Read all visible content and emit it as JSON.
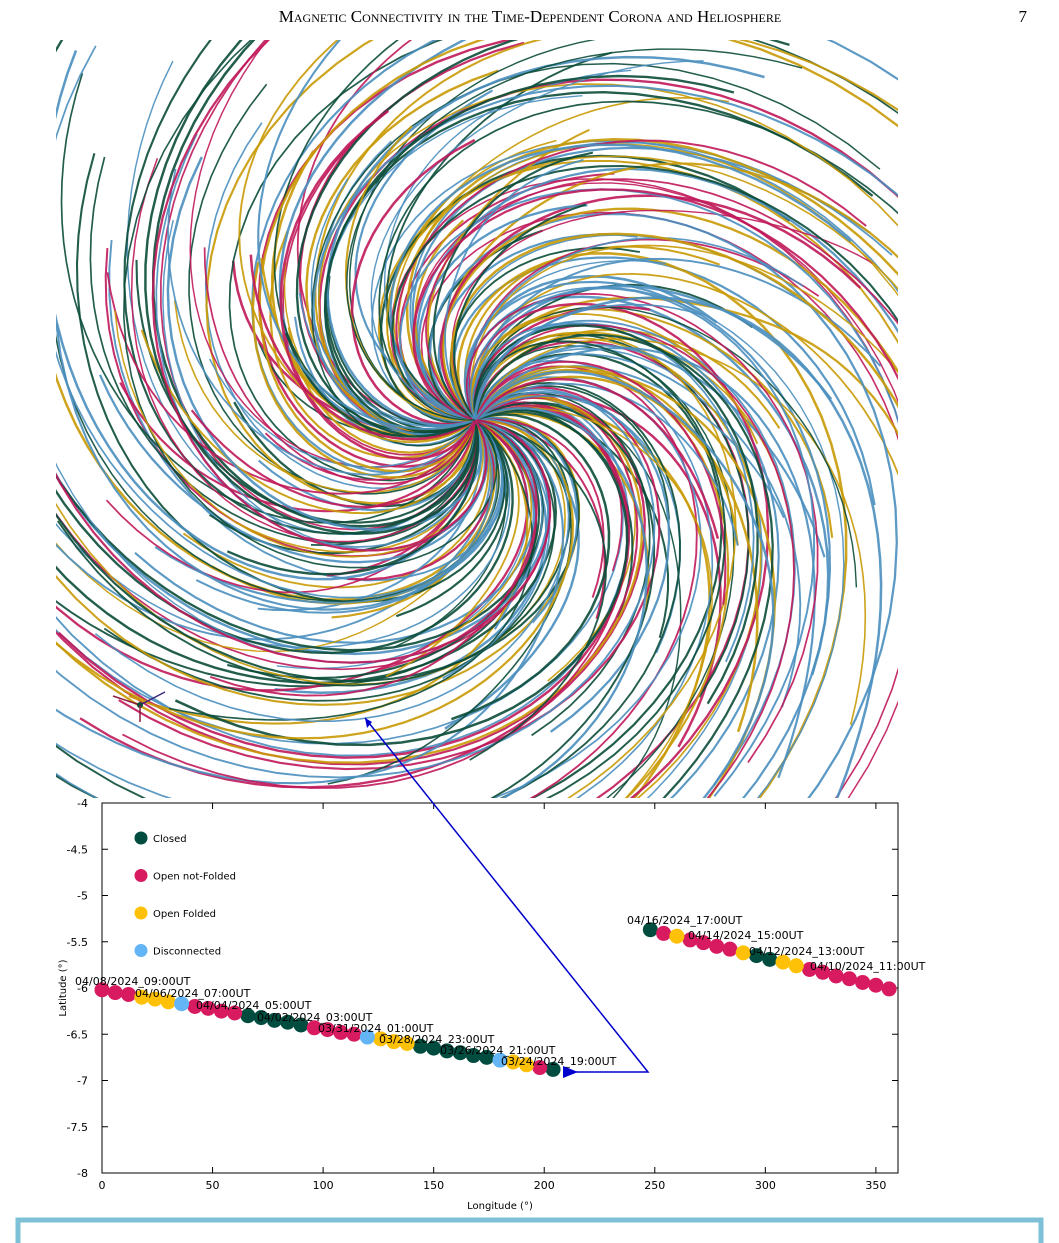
{
  "header": {
    "title": "Magnetic Connectivity in the Time-Dependent Corona and Heliosphere",
    "page": "7"
  },
  "chart_data": {
    "type": "scatter",
    "xlabel": "Longitude (°)",
    "ylabel": "Latitude (°)",
    "xlim": [
      0,
      360
    ],
    "ylim": [
      -8,
      -4
    ],
    "xticks": [
      0,
      50,
      100,
      150,
      200,
      250,
      300,
      350
    ],
    "yticks": [
      -8,
      -7.5,
      -7,
      -6.5,
      -6,
      -5.5,
      -5,
      -4.5,
      -4
    ],
    "legend": "upper left",
    "series": [
      {
        "name": "Closed",
        "color": "#004d40",
        "x": [
          66,
          72,
          78,
          84,
          90,
          144,
          150,
          156,
          162,
          168,
          174,
          204,
          248,
          296,
          302
        ],
        "values": [
          -6.3,
          -6.32,
          -6.35,
          -6.37,
          -6.4,
          -6.63,
          -6.65,
          -6.68,
          -6.7,
          -6.73,
          -6.75,
          -6.88,
          -5.37,
          -5.65,
          -5.69
        ]
      },
      {
        "name": "Open not-Folded",
        "color": "#d81b60",
        "x": [
          0,
          6,
          12,
          42,
          48,
          54,
          60,
          96,
          102,
          108,
          114,
          198,
          254,
          266,
          272,
          278,
          284,
          320,
          326,
          332,
          338,
          344,
          350,
          356
        ],
        "values": [
          -6.02,
          -6.05,
          -6.07,
          -6.2,
          -6.22,
          -6.25,
          -6.27,
          -6.43,
          -6.45,
          -6.48,
          -6.5,
          -6.86,
          -5.41,
          -5.48,
          -5.51,
          -5.55,
          -5.58,
          -5.8,
          -5.83,
          -5.87,
          -5.9,
          -5.94,
          -5.97,
          -6.01
        ]
      },
      {
        "name": "Open Folded",
        "color": "#ffc107",
        "x": [
          18,
          24,
          30,
          126,
          132,
          138,
          186,
          192,
          260,
          290,
          308,
          314
        ],
        "values": [
          -6.1,
          -6.12,
          -6.15,
          -6.55,
          -6.58,
          -6.6,
          -6.8,
          -6.83,
          -5.44,
          -5.62,
          -5.72,
          -5.76
        ]
      },
      {
        "name": "Disconnected",
        "color": "#64b5f6",
        "x": [
          36,
          120,
          180
        ],
        "values": [
          -6.17,
          -6.53,
          -6.78
        ]
      }
    ],
    "annotations": [
      "04/08/2024_09:00UT",
      "04/06/2024_07:00UT",
      "04/04/2024_05:00UT",
      "04/02/2024_03:00UT",
      "03/31/2024_01:00UT",
      "03/28/2024_23:00UT",
      "03/26/2024_21:00UT",
      "03/24/2024_19:00UT",
      "04/16/2024_17:00UT",
      "04/14/2024_15:00UT",
      "04/12/2024_13:00UT",
      "04/10/2024_11:00UT"
    ]
  }
}
